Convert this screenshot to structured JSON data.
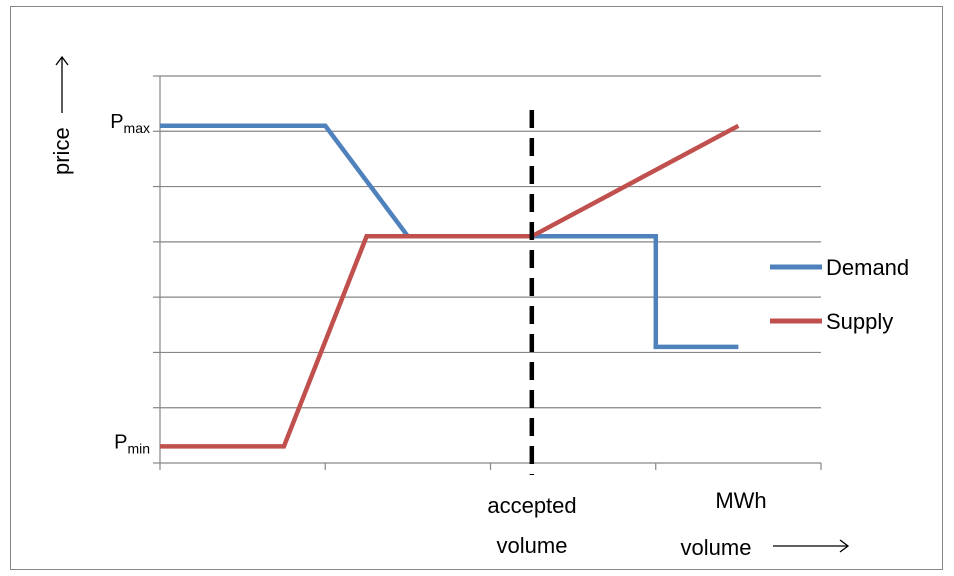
{
  "chart_data": {
    "type": "line",
    "xlabel": "volume",
    "ylabel": "price",
    "x_unit_label": "MWh",
    "x": [
      0,
      1,
      2,
      3,
      4,
      5,
      6,
      7,
      8,
      9,
      10,
      11,
      12,
      13,
      14,
      15,
      16
    ],
    "xlim": [
      0,
      16
    ],
    "ylim": [
      0,
      7
    ],
    "y_tick_labels": [
      {
        "base": "P",
        "sub": "min",
        "value": 0.3
      },
      {
        "base": "P",
        "sub": "max",
        "value": 6.1
      }
    ],
    "grid": true,
    "legend": "right",
    "series": [
      {
        "name": "Demand",
        "color": "#4f81bd",
        "points": [
          [
            0,
            6.1
          ],
          [
            4,
            6.1
          ],
          [
            6,
            4.1
          ],
          [
            9,
            4.1
          ],
          [
            12,
            4.1
          ],
          [
            12,
            2.1
          ],
          [
            14,
            2.1
          ]
        ]
      },
      {
        "name": "Supply",
        "color": "#c0504d",
        "points": [
          [
            0,
            0.3
          ],
          [
            3,
            0.3
          ],
          [
            5,
            4.1
          ],
          [
            9,
            4.1
          ],
          [
            14,
            6.1
          ]
        ]
      }
    ],
    "annotations": [
      {
        "type": "vline",
        "x": 9,
        "label_line1": "accepted",
        "label_line2": "volume",
        "style": "dashed",
        "color": "#000000"
      }
    ]
  }
}
